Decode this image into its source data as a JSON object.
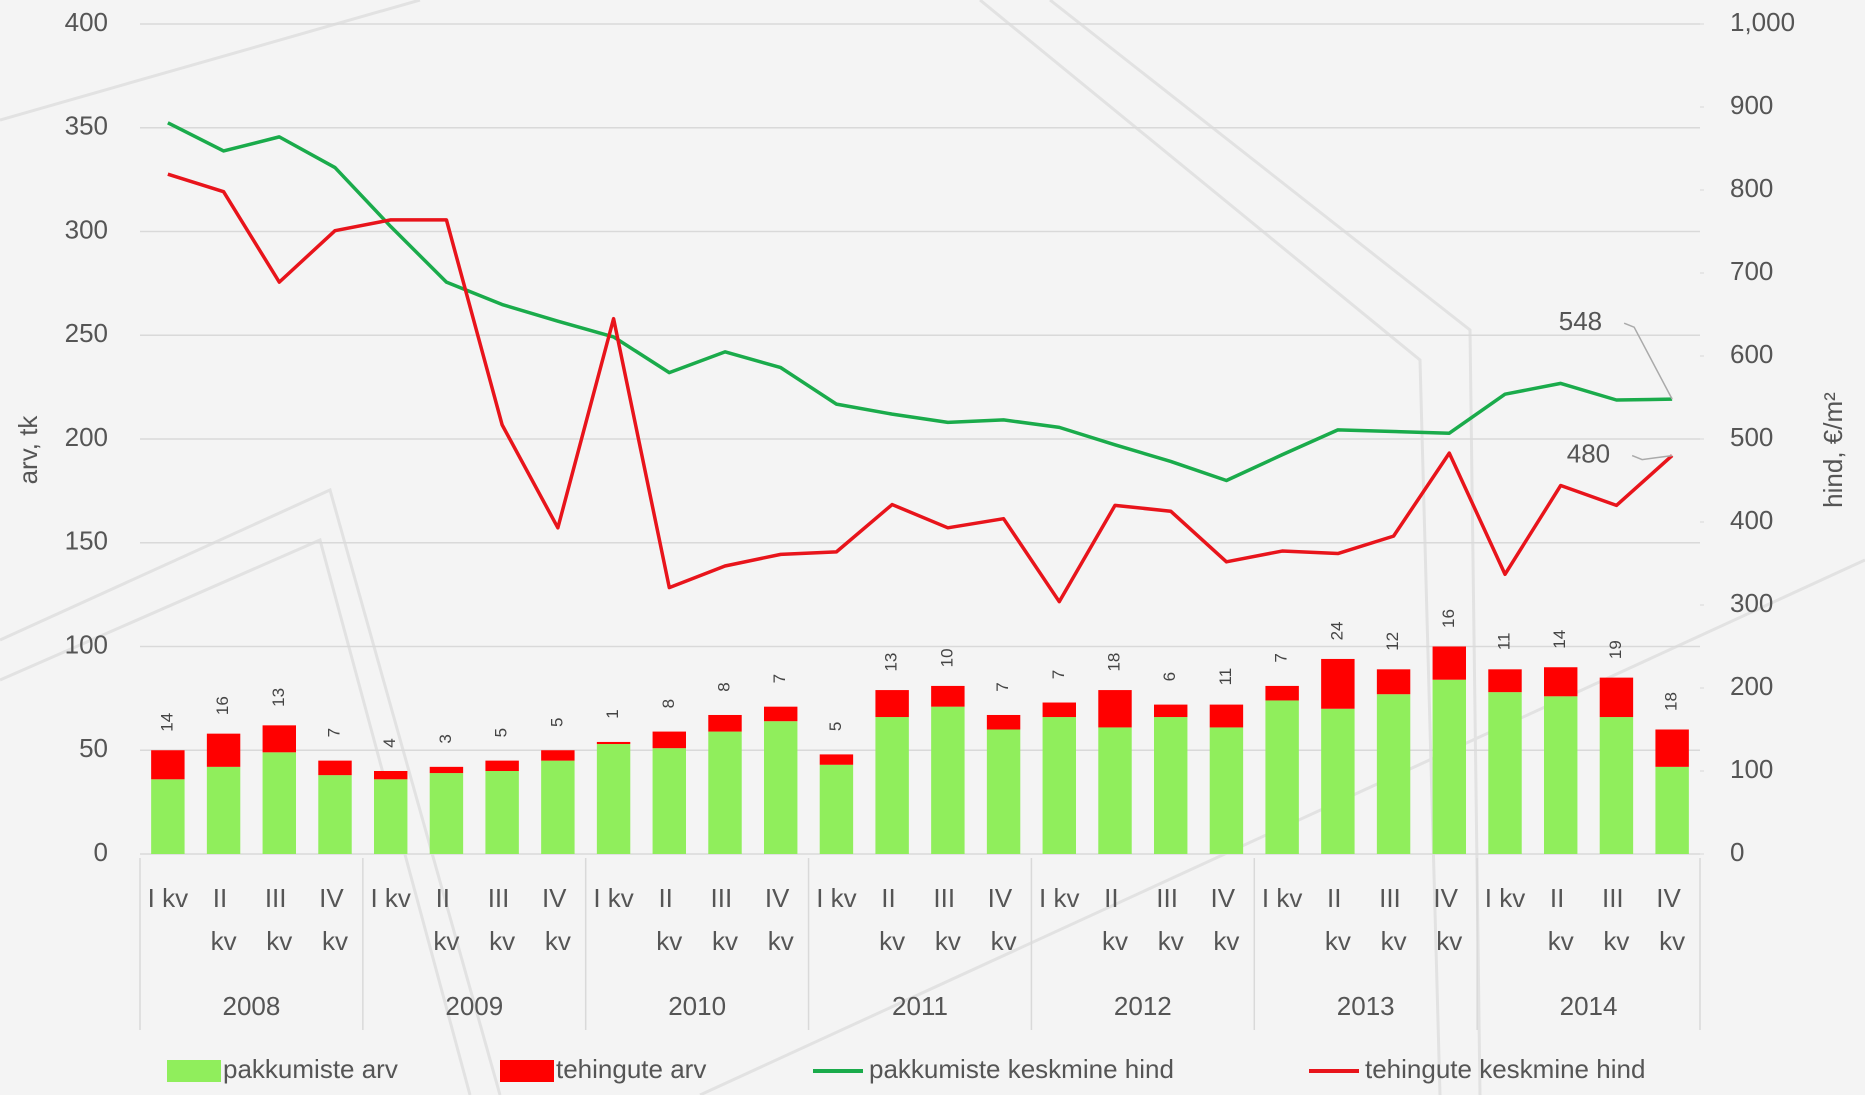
{
  "chart_data": {
    "type": "bar",
    "stacked": true,
    "ylabel": "arv, tk",
    "y2label": "hind, €/m²",
    "categories": [
      "I kv",
      "II kv",
      "III kv",
      "IV kv",
      "I kv",
      "II kv",
      "III kv",
      "IV kv",
      "I kv",
      "II kv",
      "III kv",
      "IV kv",
      "I kv",
      "II kv",
      "III kv",
      "IV kv",
      "I kv",
      "II kv",
      "III kv",
      "IV kv",
      "I kv",
      "II kv",
      "III kv",
      "IV kv",
      "I kv",
      "II kv",
      "III kv",
      "IV kv"
    ],
    "years": [
      "2008",
      "2009",
      "2010",
      "2011",
      "2012",
      "2013",
      "2014"
    ],
    "ylim": [
      0,
      400
    ],
    "yticks": [
      0,
      50,
      100,
      150,
      200,
      250,
      300,
      350,
      400
    ],
    "y2lim": [
      0,
      1000
    ],
    "y2ticks": [
      0,
      100,
      200,
      300,
      400,
      500,
      600,
      700,
      800,
      900,
      {
        "value": 1000,
        "label": "1,000"
      }
    ],
    "grid": true,
    "series": [
      {
        "name": "pakkumiste arv",
        "type": "bar",
        "color": "#90ee5c",
        "values": [
          36,
          42,
          49,
          38,
          36,
          39,
          40,
          45,
          53,
          51,
          59,
          64,
          43,
          66,
          71,
          60,
          66,
          61,
          66,
          61,
          74,
          70,
          77,
          84,
          78,
          76,
          66,
          42
        ]
      },
      {
        "name": "tehingute arv",
        "type": "bar",
        "color": "#ff0000",
        "data_labels": true,
        "values": [
          14,
          16,
          13,
          7,
          4,
          3,
          5,
          5,
          1,
          8,
          8,
          7,
          5,
          13,
          10,
          7,
          7,
          18,
          6,
          11,
          7,
          24,
          12,
          16,
          11,
          14,
          19,
          18
        ]
      },
      {
        "name": "pakkumiste keskmine hind",
        "type": "line",
        "axis": "y2",
        "color": "#1aab4b",
        "values": [
          881,
          847,
          864,
          827,
          756,
          689,
          662,
          642,
          623,
          580,
          605,
          586,
          542,
          530,
          520,
          523,
          514,
          493,
          473,
          450,
          481,
          511,
          509,
          507,
          554,
          567,
          547,
          548
        ],
        "value_labels": [
          null,
          null,
          null,
          null,
          null,
          null,
          null,
          null,
          null,
          null,
          null,
          null,
          null,
          null,
          null,
          null,
          null,
          null,
          null,
          null,
          null,
          null,
          null,
          null,
          null,
          null,
          null,
          "548"
        ]
      },
      {
        "name": "tehingute keskmine hind",
        "type": "line",
        "axis": "y2",
        "color": "#e8141b",
        "values": [
          819,
          798,
          689,
          751,
          764,
          764,
          517,
          393,
          645,
          321,
          347,
          361,
          364,
          421,
          393,
          404,
          304,
          420,
          413,
          352,
          365,
          362,
          383,
          483,
          337,
          444,
          420,
          480
        ],
        "value_labels": [
          null,
          null,
          null,
          null,
          null,
          null,
          null,
          null,
          null,
          null,
          null,
          null,
          null,
          null,
          null,
          null,
          null,
          null,
          null,
          null,
          null,
          null,
          null,
          null,
          null,
          null,
          null,
          "480"
        ]
      }
    ]
  }
}
